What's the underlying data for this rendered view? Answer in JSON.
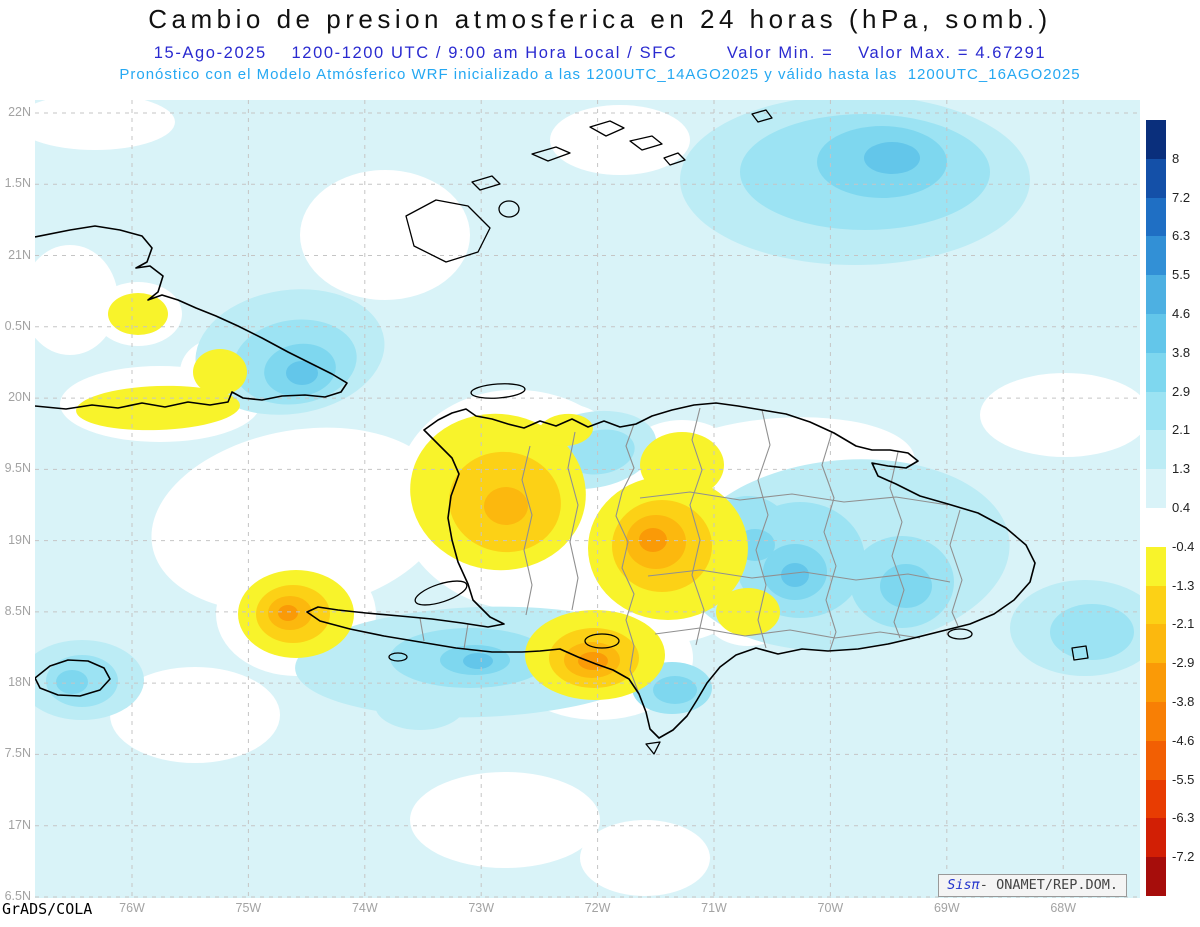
{
  "header": {
    "title": "Cambio de presion atmosferica en 24 horas (hPa, somb.)",
    "subtitle": "15-Ago-2025    1200-1200 UTC / 9:00 am Hora Local / SFC        Valor Min. =    Valor Max. = 4.67291",
    "forecast_line": "Pronóstico con el Modelo Atmósferico WRF inicializado a las 1200UTC_14AGO2025 y válido hasta las  1200UTC_16AGO2025"
  },
  "footer": {
    "credit": "GrADS/COLA",
    "stamp": {
      "system": "Sisπ",
      "separator": "-",
      "org": "ONAMET/REP.DOM."
    }
  },
  "chart_data": {
    "type": "heatmap",
    "title": "Cambio de presion atmosferica en 24 horas (hPa, somb.)",
    "variable": "24-hour surface (SFC) atmospheric pressure change",
    "units": "hPa",
    "date": "15-Ago-2025",
    "period": "1200-1200 UTC / 9:00 am Hora Local / SFC",
    "model": "WRF",
    "initialized": "1200UTC_14AGO2025",
    "valid_until": "1200UTC_16AGO2025",
    "valor_min": "",
    "valor_max": 4.67291,
    "lat_ticks": [
      "22N",
      "1.5N",
      "21N",
      "0.5N",
      "20N",
      "9.5N",
      "19N",
      "8.5N",
      "18N",
      "7.5N",
      "17N",
      "6.5N"
    ],
    "lon_ticks": [
      "76W",
      "75W",
      "74W",
      "73W",
      "72W",
      "71W",
      "70W",
      "69W",
      "68W"
    ],
    "colorbar": {
      "levels": [
        8,
        7.2,
        6.3,
        5.5,
        4.6,
        3.8,
        2.9,
        2.1,
        1.3,
        0.4,
        -0.4,
        -1.3,
        -2.1,
        -2.9,
        -3.8,
        -4.6,
        -5.5,
        -6.3,
        -7.2
      ],
      "colors": [
        "#0a2f7c",
        "#1450a8",
        "#1f6fc4",
        "#3290d6",
        "#4db0e2",
        "#63c6ea",
        "#7ed7ef",
        "#9ce3f3",
        "#bcecf5",
        "#d9f3f8",
        "#ffffff",
        "#f8f32b",
        "#fcd116",
        "#fcb80e",
        "#fa9a07",
        "#f87f05",
        "#f25f03",
        "#e83c02",
        "#d21f05",
        "#a60d0b"
      ]
    },
    "shaded_regions": [
      {
        "area": "Atlantic north of Hispaniola (20.5-22N, 69-71.5W)",
        "range_hpa": "+1.3 to +3.8"
      },
      {
        "area": "Eastern Cuba interior near 20.3N 75W",
        "range_hpa": "+1.3 to +3.8"
      },
      {
        "area": "Central-eastern Dominican Republic",
        "range_hpa": "+1.3 to +3.8"
      },
      {
        "area": "Caribbean just south of Haiti south coast",
        "range_hpa": "+1.3 to +2.9"
      },
      {
        "area": "Near Jamaica (18N, 76.5W)",
        "range_hpa": "+1.3 to +2.9"
      },
      {
        "area": "Southeast corner near Mona Passage",
        "range_hpa": "+1.3 to +2.1"
      },
      {
        "area": "Northwest Haiti",
        "range_hpa": "-0.4 to -2.9"
      },
      {
        "area": "Haiti / Dominican Republic border highlands",
        "range_hpa": "-0.4 to -3.8"
      },
      {
        "area": "South coast near Barahona / Jacmel",
        "range_hpa": "-0.4 to -3.8"
      },
      {
        "area": "Sea west of Tiburon peninsula (18.5N, 75.3W)",
        "range_hpa": "-0.4 to -2.9"
      },
      {
        "area": "South coast of eastern Cuba",
        "range_hpa": "-0.4 to -1.3"
      },
      {
        "area": "North-central Dominican Republic (19.4N, 71.3W)",
        "range_hpa": "-0.4 to -1.3"
      }
    ]
  }
}
